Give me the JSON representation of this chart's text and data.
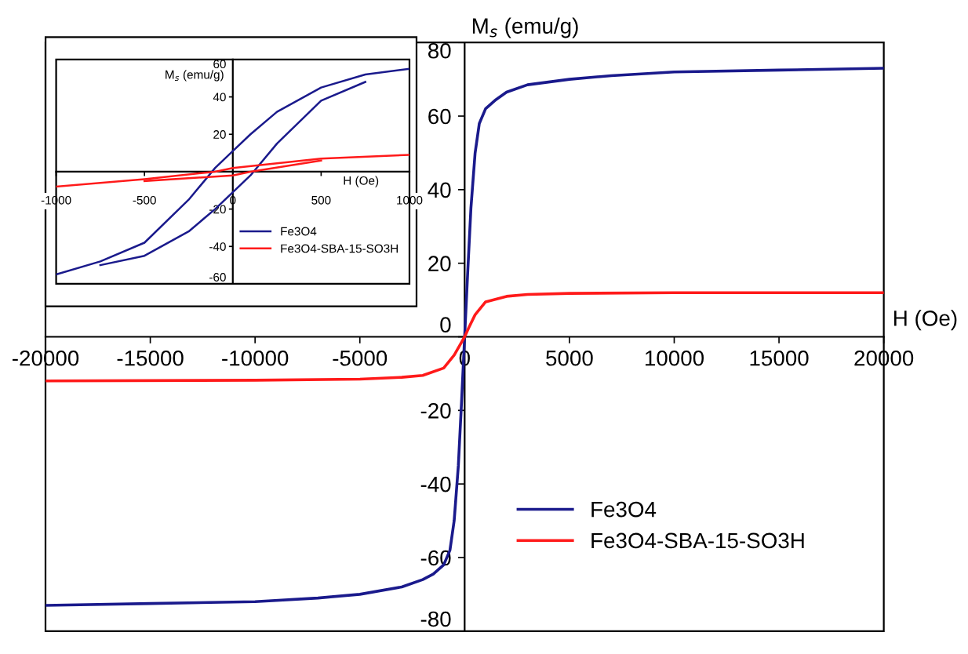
{
  "chart_data": [
    {
      "type": "line",
      "xlabel": "H (Oe)",
      "ylabel": "M$_{s}$ (emu/g)",
      "xlim": [
        -20000,
        20000
      ],
      "ylim": [
        -80,
        80
      ],
      "xticks": [
        -20000,
        -15000,
        -10000,
        -5000,
        0,
        5000,
        10000,
        15000,
        20000
      ],
      "yticks": [
        -80,
        -60,
        -40,
        -20,
        0,
        20,
        40,
        60,
        80
      ],
      "grid": false,
      "legend": "bottom right",
      "series": [
        {
          "name": "Fe3O4",
          "color": "#1a1a8c",
          "x": [
            -20000,
            -15000,
            -10000,
            -7000,
            -5000,
            -3000,
            -2000,
            -1500,
            -1000,
            -700,
            -500,
            -300,
            -150,
            0,
            150,
            300,
            500,
            700,
            1000,
            1500,
            2000,
            3000,
            5000,
            7000,
            10000,
            15000,
            20000
          ],
          "values": [
            -73,
            -72.5,
            -72,
            -71,
            -70,
            -68,
            -66,
            -64.5,
            -62,
            -58,
            -50,
            -35,
            -18,
            0,
            18,
            35,
            50,
            58,
            62,
            64.5,
            66.5,
            68.5,
            70,
            71,
            72,
            72.5,
            73
          ]
        },
        {
          "name": "Fe3O4-SBA-15-SO3H",
          "color": "#ff1a1a",
          "x": [
            -20000,
            -10000,
            -5000,
            -3000,
            -2000,
            -1000,
            -500,
            -200,
            0,
            200,
            500,
            1000,
            2000,
            3000,
            5000,
            10000,
            20000
          ],
          "values": [
            -12,
            -11.8,
            -11.5,
            -11,
            -10.5,
            -8.5,
            -5,
            -2,
            0,
            2.5,
            6,
            9.5,
            11,
            11.5,
            11.8,
            12,
            12
          ]
        }
      ]
    },
    {
      "type": "line",
      "xlabel": "H (Oe)",
      "ylabel": "M$_{s}$ (emu/g)",
      "xlim": [
        -1000,
        1000
      ],
      "ylim": [
        -60,
        60
      ],
      "xticks": [
        -1000,
        -500,
        0,
        500,
        1000
      ],
      "yticks": [
        -60,
        -40,
        -20,
        {
          "value": 0,
          "label": null
        },
        20,
        40,
        60
      ],
      "grid": false,
      "legend": "bottom right",
      "series": [
        {
          "name": "Fe3O4",
          "color": "#1a1a8c",
          "x": [
            -1000,
            -750,
            -500,
            -250,
            -100,
            0,
            100,
            250,
            500,
            750,
            1000
          ],
          "values": [
            -55,
            -48,
            -38,
            -15,
            2,
            11,
            20,
            32,
            45,
            52,
            55
          ]
        },
        {
          "color": "#1a1a8c",
          "x": [
            -750,
            -500,
            -250,
            -100,
            0,
            100,
            250,
            500,
            750
          ],
          "values": [
            -50,
            -45,
            -32,
            -20,
            -11,
            -2,
            15,
            38,
            48
          ]
        },
        {
          "name": "Fe3O4-SBA-15-SO3H",
          "color": "#ff1a1a",
          "x": [
            -1000,
            -500,
            -100,
            0,
            500,
            1000
          ],
          "values": [
            -8,
            -4,
            0,
            2,
            7,
            9
          ]
        },
        {
          "color": "#ff1a1a",
          "x": [
            -500,
            0,
            100,
            500
          ],
          "values": [
            -5,
            -2,
            0,
            6
          ]
        }
      ]
    }
  ]
}
